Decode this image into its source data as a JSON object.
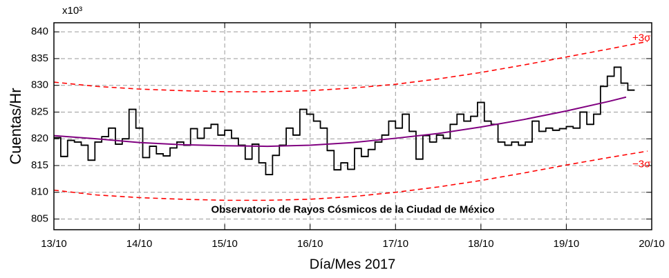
{
  "chart_data": {
    "type": "line",
    "axis_multiplier": "x10³",
    "ylabel": "Cuentas/Hr",
    "xlabel": "Día/Mes 2017",
    "xlim": [
      13,
      20
    ],
    "xticks": [
      {
        "value": 13,
        "label": "13/10"
      },
      {
        "value": 14,
        "label": "14/10"
      },
      {
        "value": 15,
        "label": "15/10"
      },
      {
        "value": 16,
        "label": "16/10"
      },
      {
        "value": 17,
        "label": "17/10"
      },
      {
        "value": 18,
        "label": "18/10"
      },
      {
        "value": 19,
        "label": "19/10"
      },
      {
        "value": 20,
        "label": "20/10"
      }
    ],
    "ylim": [
      803,
      841.7
    ],
    "yticks": [
      805,
      810,
      815,
      820,
      825,
      830,
      835,
      840
    ],
    "grid": true,
    "series": [
      {
        "style": "step",
        "color": "#000000",
        "x": [
          13,
          13.08,
          13.16,
          13.24,
          13.32,
          13.4,
          13.48,
          13.56,
          13.64,
          13.72,
          13.8,
          13.88,
          13.96,
          14.04,
          14.12,
          14.2,
          14.28,
          14.36,
          14.44,
          14.52,
          14.6,
          14.68,
          14.76,
          14.84,
          14.92,
          15,
          15.08,
          15.16,
          15.24,
          15.32,
          15.4,
          15.48,
          15.56,
          15.64,
          15.72,
          15.8,
          15.88,
          15.96,
          16.04,
          16.12,
          16.2,
          16.28,
          16.36,
          16.44,
          16.52,
          16.6,
          16.68,
          16.76,
          16.84,
          16.92,
          17,
          17.08,
          17.16,
          17.24,
          17.32,
          17.4,
          17.48,
          17.56,
          17.64,
          17.72,
          17.8,
          17.88,
          17.96,
          18.04,
          18.12,
          18.2,
          18.28,
          18.36,
          18.44,
          18.52,
          18.6,
          18.68,
          18.76,
          18.84,
          18.92,
          19,
          19.08,
          19.16,
          19.24,
          19.32,
          19.4,
          19.48,
          19.56,
          19.64,
          19.72
        ],
        "values": [
          820.2,
          816.7,
          819.7,
          819.4,
          818.8,
          816,
          819.4,
          820.4,
          822,
          819,
          820,
          825.5,
          822,
          816.5,
          818.6,
          817.2,
          816.8,
          818.3,
          819.4,
          818.8,
          821.9,
          820.1,
          822,
          822.7,
          820.7,
          821.6,
          820.1,
          818.8,
          816.2,
          819,
          815.5,
          813.3,
          816.9,
          818.8,
          822,
          820.7,
          825.5,
          824.6,
          823.3,
          822,
          817.8,
          814.2,
          815.5,
          814.3,
          818.2,
          816.7,
          818,
          819.4,
          820.7,
          823.3,
          822,
          824.6,
          821.4,
          816.2,
          820.6,
          819.4,
          820.7,
          820.1,
          822.7,
          824.6,
          823.3,
          824.2,
          826.8,
          823.3,
          822.7,
          819.4,
          818.8,
          819.4,
          818.8,
          819.4,
          823.3,
          821.4,
          822,
          821.6,
          821.9,
          822.3,
          822,
          825,
          822.7,
          824.6,
          829.8,
          831.7,
          833.4,
          830.4,
          829.1
        ]
      },
      {
        "style": "solid",
        "color": "#800080",
        "x": [
          13,
          13.5,
          14,
          14.5,
          15,
          15.5,
          16,
          16.5,
          17,
          17.5,
          18,
          18.5,
          19,
          19.5,
          19.7
        ],
        "values": [
          820.6,
          820,
          819.3,
          818.9,
          818.7,
          818.6,
          818.8,
          819.3,
          820.1,
          821,
          822.2,
          823.6,
          825.2,
          827,
          827.8
        ]
      },
      {
        "style": "dashed",
        "color": "#ff0000",
        "x": [
          13,
          13.5,
          14,
          14.5,
          15,
          15.5,
          16,
          16.5,
          17,
          17.5,
          18,
          18.5,
          19,
          19.5,
          19.95
        ],
        "values": [
          830.6,
          829.8,
          829.3,
          829,
          828.8,
          828.8,
          829,
          829.5,
          830.2,
          831.2,
          832.4,
          833.8,
          835.3,
          836.8,
          838.2
        ]
      },
      {
        "style": "dashed",
        "color": "#ff0000",
        "x": [
          13,
          13.5,
          14,
          14.5,
          15,
          15.5,
          16,
          16.5,
          17,
          17.5,
          18,
          18.5,
          19,
          19.5,
          19.95
        ],
        "values": [
          810.4,
          809.5,
          809,
          808.7,
          808.5,
          808.5,
          808.7,
          809.2,
          810,
          811,
          812.2,
          813.6,
          815.1,
          816.5,
          817.7
        ]
      }
    ],
    "annotations": [
      {
        "text": "+3σ",
        "x": 19.88,
        "y": 838.8,
        "color": "#ff0000"
      },
      {
        "text": "−3σ",
        "x": 19.88,
        "y": 815.2,
        "color": "#ff0000"
      },
      {
        "text": "Observatorio de Rayos Cósmicos de la Ciudad de México",
        "x": 16.5,
        "y": 806.7,
        "color": "#000000",
        "bold": true
      }
    ]
  }
}
